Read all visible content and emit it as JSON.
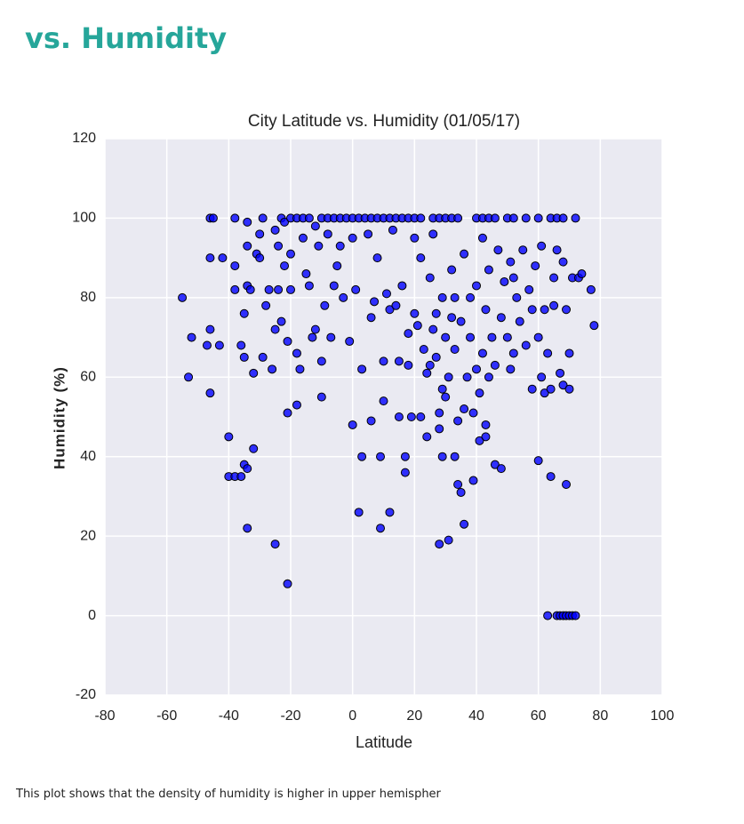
{
  "header": {
    "title": "vs. Humidity"
  },
  "chart_data": {
    "type": "scatter",
    "title": "City Latitude vs. Humidity (01/05/17)",
    "x_label": "Latitude",
    "y_label": "Humidity (%)",
    "color": "#0000ff",
    "grid": true,
    "xlim": [
      -80,
      100
    ],
    "xticks": [
      -80,
      -60,
      -40,
      -20,
      0,
      20,
      40,
      60,
      80,
      100
    ],
    "ylim": [
      -20,
      120
    ],
    "yticks": [
      -20,
      0,
      20,
      40,
      60,
      80,
      100,
      120
    ],
    "x": [
      -46,
      -45,
      -38,
      -34,
      -30,
      -29,
      -25,
      -23,
      -22,
      -20,
      -18,
      -16,
      -14,
      -12,
      -10,
      -8,
      -6,
      -4,
      -2,
      0,
      2,
      4,
      6,
      8,
      10,
      12,
      14,
      16,
      18,
      20,
      22,
      26,
      28,
      30,
      32,
      34,
      40,
      42,
      44,
      46,
      50,
      52,
      56,
      60,
      64,
      66,
      68,
      72,
      -55,
      -53,
      -52,
      -47,
      -46,
      -46,
      -46,
      -43,
      -42,
      -40,
      -40,
      -38,
      -38,
      -38,
      -36,
      -36,
      -35,
      -35,
      -35,
      -34,
      -34,
      -34,
      -34,
      -33,
      -32,
      -32,
      -31,
      -30,
      -29,
      -28,
      -27,
      -26,
      -25,
      -25,
      -24,
      -24,
      -23,
      -22,
      -21,
      -21,
      -21,
      -20,
      -20,
      -18,
      -18,
      -17,
      -16,
      -15,
      -14,
      -13,
      -12,
      -11,
      -10,
      -10,
      -9,
      -8,
      -7,
      -6,
      -5,
      -4,
      -3,
      -1,
      0,
      0,
      1,
      2,
      3,
      3,
      5,
      6,
      6,
      7,
      8,
      9,
      9,
      10,
      10,
      11,
      12,
      12,
      13,
      14,
      15,
      15,
      16,
      17,
      17,
      18,
      18,
      19,
      20,
      20,
      21,
      22,
      22,
      23,
      24,
      24,
      25,
      25,
      26,
      26,
      27,
      27,
      28,
      28,
      28,
      29,
      29,
      29,
      30,
      30,
      31,
      31,
      32,
      32,
      33,
      33,
      33,
      34,
      34,
      35,
      35,
      36,
      36,
      36,
      37,
      38,
      38,
      39,
      39,
      40,
      40,
      41,
      41,
      42,
      42,
      43,
      43,
      43,
      44,
      44,
      45,
      46,
      46,
      47,
      48,
      48,
      49,
      50,
      51,
      51,
      52,
      52,
      53,
      54,
      55,
      56,
      57,
      58,
      58,
      59,
      60,
      60,
      61,
      61,
      62,
      62,
      63,
      63,
      64,
      64,
      65,
      65,
      66,
      66,
      67,
      67,
      68,
      68,
      68,
      69,
      69,
      69,
      70,
      70,
      70,
      71,
      71,
      72,
      73,
      74,
      77,
      78
    ],
    "values": [
      100,
      100,
      100,
      99,
      96,
      100,
      97,
      100,
      99,
      100,
      100,
      100,
      100,
      98,
      100,
      100,
      100,
      100,
      100,
      100,
      100,
      100,
      100,
      100,
      100,
      100,
      100,
      100,
      100,
      100,
      100,
      100,
      100,
      100,
      100,
      100,
      100,
      100,
      100,
      100,
      100,
      100,
      100,
      100,
      100,
      100,
      100,
      100,
      80,
      60,
      70,
      68,
      72,
      90,
      56,
      68,
      90,
      45,
      35,
      35,
      82,
      88,
      68,
      35,
      38,
      65,
      76,
      22,
      37,
      83,
      93,
      82,
      42,
      61,
      91,
      90,
      65,
      78,
      82,
      62,
      18,
      72,
      82,
      93,
      74,
      88,
      51,
      8,
      69,
      82,
      91,
      53,
      66,
      62,
      95,
      86,
      83,
      70,
      72,
      93,
      55,
      64,
      78,
      96,
      70,
      83,
      88,
      93,
      80,
      69,
      48,
      95,
      82,
      26,
      40,
      62,
      96,
      75,
      49,
      79,
      90,
      40,
      22,
      54,
      64,
      81,
      26,
      77,
      97,
      78,
      50,
      64,
      83,
      36,
      40,
      63,
      71,
      50,
      76,
      95,
      73,
      50,
      90,
      67,
      45,
      61,
      63,
      85,
      72,
      96,
      76,
      65,
      47,
      51,
      18,
      57,
      40,
      80,
      70,
      55,
      19,
      60,
      75,
      87,
      40,
      67,
      80,
      33,
      49,
      31,
      74,
      23,
      52,
      91,
      60,
      70,
      80,
      34,
      51,
      62,
      83,
      44,
      56,
      66,
      95,
      45,
      48,
      77,
      87,
      60,
      70,
      38,
      63,
      92,
      37,
      75,
      84,
      70,
      62,
      89,
      66,
      85,
      80,
      74,
      92,
      68,
      82,
      57,
      77,
      88,
      39,
      70,
      60,
      93,
      56,
      77,
      0,
      66,
      35,
      57,
      78,
      85,
      0,
      92,
      0,
      61,
      0,
      58,
      89,
      0,
      33,
      77,
      0,
      57,
      66,
      0,
      85,
      0,
      85,
      86,
      82,
      73
    ]
  },
  "note": {
    "text": "This plot shows that the density of humidity is higher in upper hemispher"
  }
}
